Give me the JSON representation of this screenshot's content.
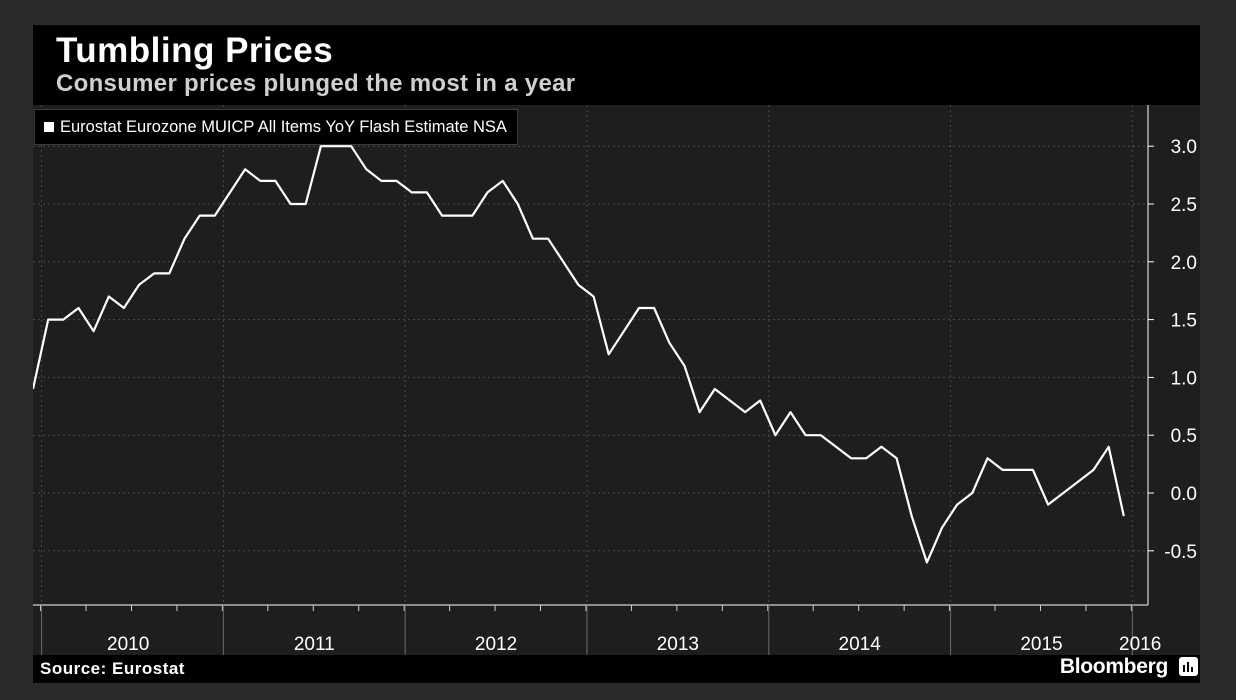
{
  "header": {
    "title": "Tumbling Prices",
    "subtitle": "Consumer prices plunged the most in a year"
  },
  "legend": {
    "label": "Eurostat Eurozone MUICP All Items YoY Flash Estimate NSA"
  },
  "footer": {
    "source": "Source: Eurostat",
    "brand": "Bloomberg"
  },
  "colors": {
    "background": "#2b2b2b",
    "plot": "#1e1e1e",
    "line": "#ffffff",
    "grid": "#555555"
  },
  "chart_data": {
    "type": "line",
    "title": "Tumbling Prices",
    "subtitle": "Consumer prices plunged the most in a year",
    "xlabel": "",
    "ylabel": "",
    "x_tick_labels": [
      "2010",
      "2011",
      "2012",
      "2013",
      "2014",
      "2015",
      "2016"
    ],
    "y_ticks": [
      3.0,
      2.5,
      2.0,
      1.5,
      1.0,
      0.5,
      0.0,
      -0.5
    ],
    "y_tick_labels": [
      "3.0",
      "2.5",
      "2.0",
      "1.5",
      "1.0",
      "0.5",
      "0.0",
      "-0.5"
    ],
    "ylim": [
      -0.95,
      3.3
    ],
    "y_axis_side": "right",
    "grid": true,
    "legend_position": "top-left",
    "series": [
      {
        "name": "Eurostat Eurozone MUICP All Items YoY Flash Estimate NSA",
        "color": "#ffffff",
        "points": [
          [
            "2009-12",
            0.9
          ],
          [
            "2010-01",
            1.5
          ],
          [
            "2010-02",
            1.5
          ],
          [
            "2010-03",
            1.6
          ],
          [
            "2010-04",
            1.4
          ],
          [
            "2010-05",
            1.7
          ],
          [
            "2010-06",
            1.6
          ],
          [
            "2010-07",
            1.8
          ],
          [
            "2010-08",
            1.9
          ],
          [
            "2010-09",
            1.9
          ],
          [
            "2010-10",
            2.2
          ],
          [
            "2010-11",
            2.4
          ],
          [
            "2010-12",
            2.4
          ],
          [
            "2011-01",
            2.6
          ],
          [
            "2011-02",
            2.8
          ],
          [
            "2011-03",
            2.7
          ],
          [
            "2011-04",
            2.7
          ],
          [
            "2011-05",
            2.5
          ],
          [
            "2011-06",
            2.5
          ],
          [
            "2011-07",
            3.0
          ],
          [
            "2011-08",
            3.0
          ],
          [
            "2011-09",
            3.0
          ],
          [
            "2011-10",
            2.8
          ],
          [
            "2011-11",
            2.7
          ],
          [
            "2011-12",
            2.7
          ],
          [
            "2012-01",
            2.6
          ],
          [
            "2012-02",
            2.6
          ],
          [
            "2012-03",
            2.4
          ],
          [
            "2012-04",
            2.4
          ],
          [
            "2012-05",
            2.4
          ],
          [
            "2012-06",
            2.6
          ],
          [
            "2012-07",
            2.7
          ],
          [
            "2012-08",
            2.5
          ],
          [
            "2012-09",
            2.2
          ],
          [
            "2012-10",
            2.2
          ],
          [
            "2012-11",
            2.0
          ],
          [
            "2012-12",
            1.8
          ],
          [
            "2013-01",
            1.7
          ],
          [
            "2013-02",
            1.2
          ],
          [
            "2013-03",
            1.4
          ],
          [
            "2013-04",
            1.6
          ],
          [
            "2013-05",
            1.6
          ],
          [
            "2013-06",
            1.3
          ],
          [
            "2013-07",
            1.1
          ],
          [
            "2013-08",
            0.7
          ],
          [
            "2013-09",
            0.9
          ],
          [
            "2013-10",
            0.8
          ],
          [
            "2013-11",
            0.7
          ],
          [
            "2013-12",
            0.8
          ],
          [
            "2014-01",
            0.5
          ],
          [
            "2014-02",
            0.7
          ],
          [
            "2014-03",
            0.5
          ],
          [
            "2014-04",
            0.5
          ],
          [
            "2014-05",
            0.4
          ],
          [
            "2014-06",
            0.3
          ],
          [
            "2014-07",
            0.3
          ],
          [
            "2014-08",
            0.4
          ],
          [
            "2014-09",
            0.3
          ],
          [
            "2014-10",
            -0.2
          ],
          [
            "2014-11",
            -0.6
          ],
          [
            "2014-12",
            -0.3
          ],
          [
            "2015-01",
            -0.1
          ],
          [
            "2015-02",
            0.0
          ],
          [
            "2015-03",
            0.3
          ],
          [
            "2015-04",
            0.2
          ],
          [
            "2015-05",
            0.2
          ],
          [
            "2015-06",
            0.2
          ],
          [
            "2015-07",
            -0.1
          ],
          [
            "2015-10",
            0.2
          ],
          [
            "2015-11",
            0.4
          ],
          [
            "2015-12",
            -0.2
          ]
        ]
      }
    ]
  }
}
